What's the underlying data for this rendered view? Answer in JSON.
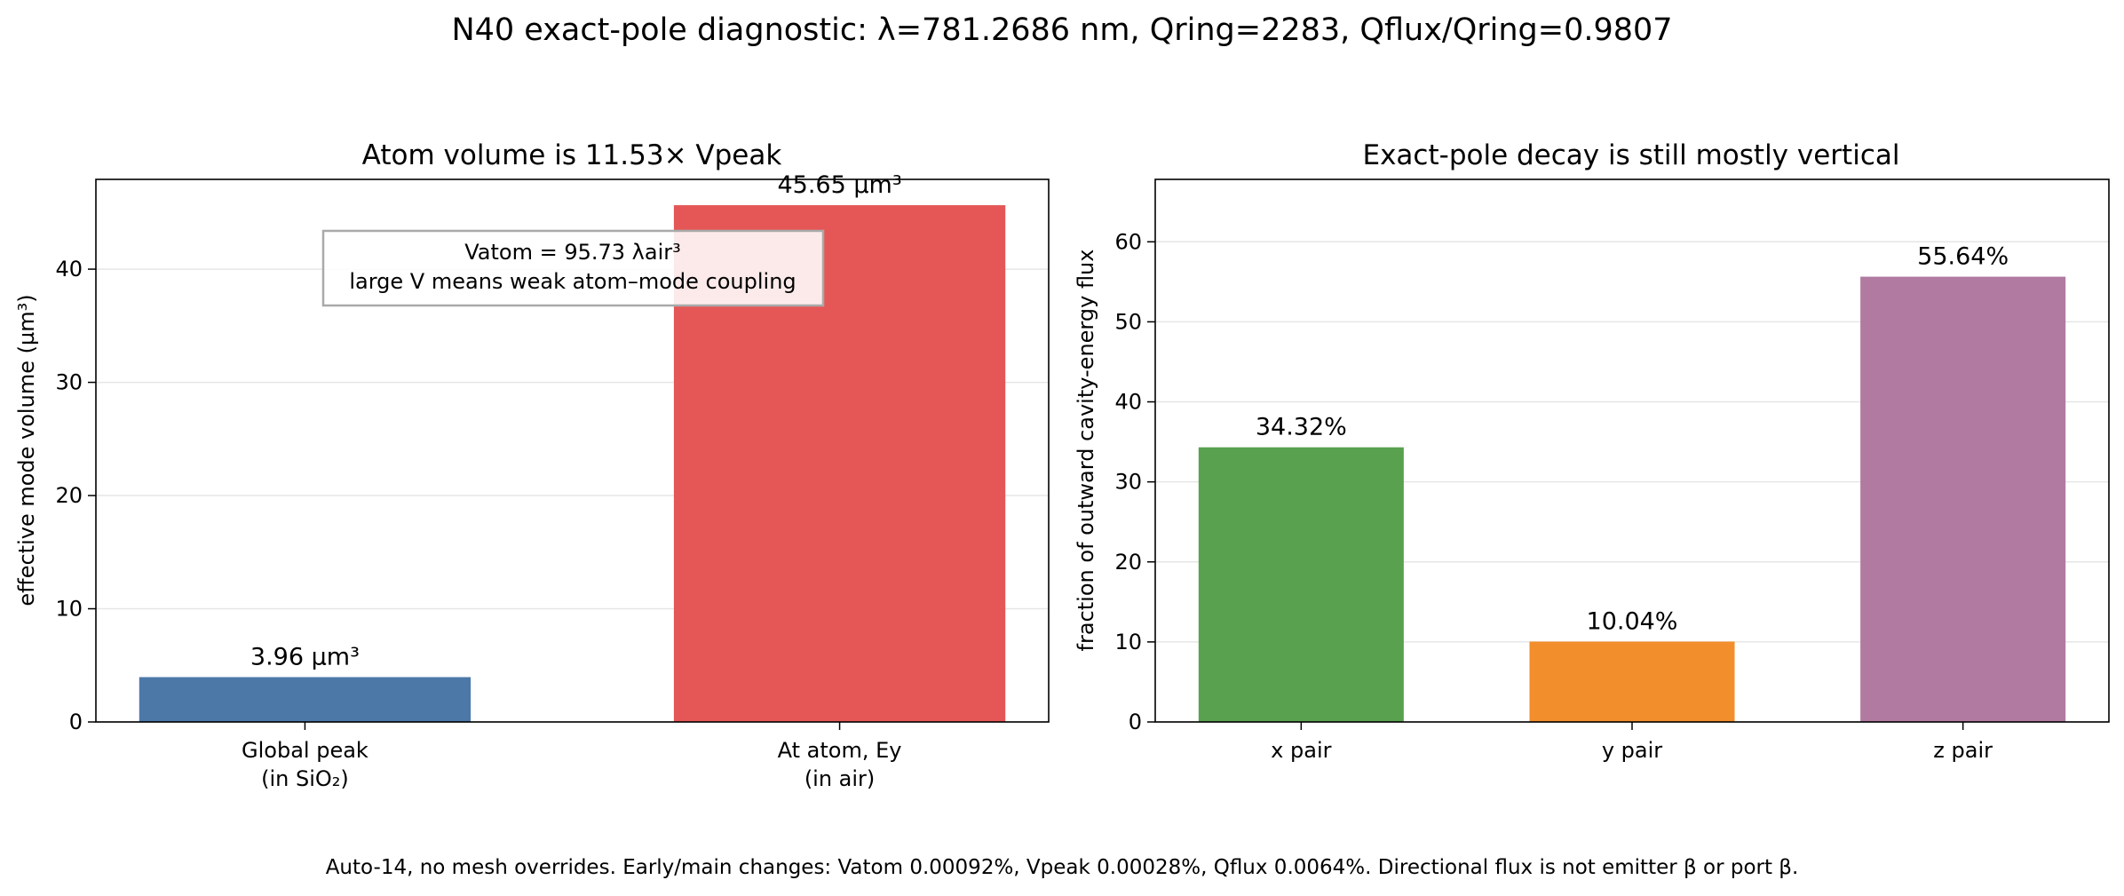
{
  "suptitle": "N40 exact-pole diagnostic: λ=781.2686 nm, Qring=2283, Qflux/Qring=0.9807",
  "footnote": "Auto-14, no mesh overrides. Early/main changes: Vatom 0.00092%, Vpeak 0.00028%, Qflux 0.0064%. Directional flux is not emitter β or port β.",
  "chart_data": [
    {
      "type": "bar",
      "title": "Atom volume is 11.53× Vpeak",
      "ylabel": "effective mode volume (µm³)",
      "xlabel": "",
      "categories": [
        [
          "Global peak",
          "(in SiO₂)"
        ],
        [
          "At atom, Ey",
          "(in air)"
        ]
      ],
      "values": [
        3.96,
        45.65
      ],
      "value_labels": [
        "3.96 µm³",
        "45.65 µm³"
      ],
      "colors": [
        "#4c78a8",
        "#e45756"
      ],
      "ylim": [
        0,
        47.93
      ],
      "yticks": [
        0,
        10,
        20,
        30,
        40
      ],
      "grid": true,
      "annotation": [
        "Vatom = 95.73 λair³",
        "large V means weak atom–mode coupling"
      ]
    },
    {
      "type": "bar",
      "title": "Exact-pole decay is still mostly vertical",
      "ylabel": "fraction of outward cavity-energy flux",
      "xlabel": "",
      "categories": [
        [
          "x pair"
        ],
        [
          "y pair"
        ],
        [
          "z pair"
        ]
      ],
      "values": [
        34.32,
        10.04,
        55.64
      ],
      "value_labels": [
        "34.32%",
        "10.04%",
        "55.64%"
      ],
      "colors": [
        "#59a14f",
        "#f28e2b",
        "#b07aa1"
      ],
      "ylim": [
        0,
        67.8
      ],
      "yticks": [
        0,
        10,
        20,
        30,
        40,
        50,
        60
      ],
      "grid": true
    }
  ]
}
